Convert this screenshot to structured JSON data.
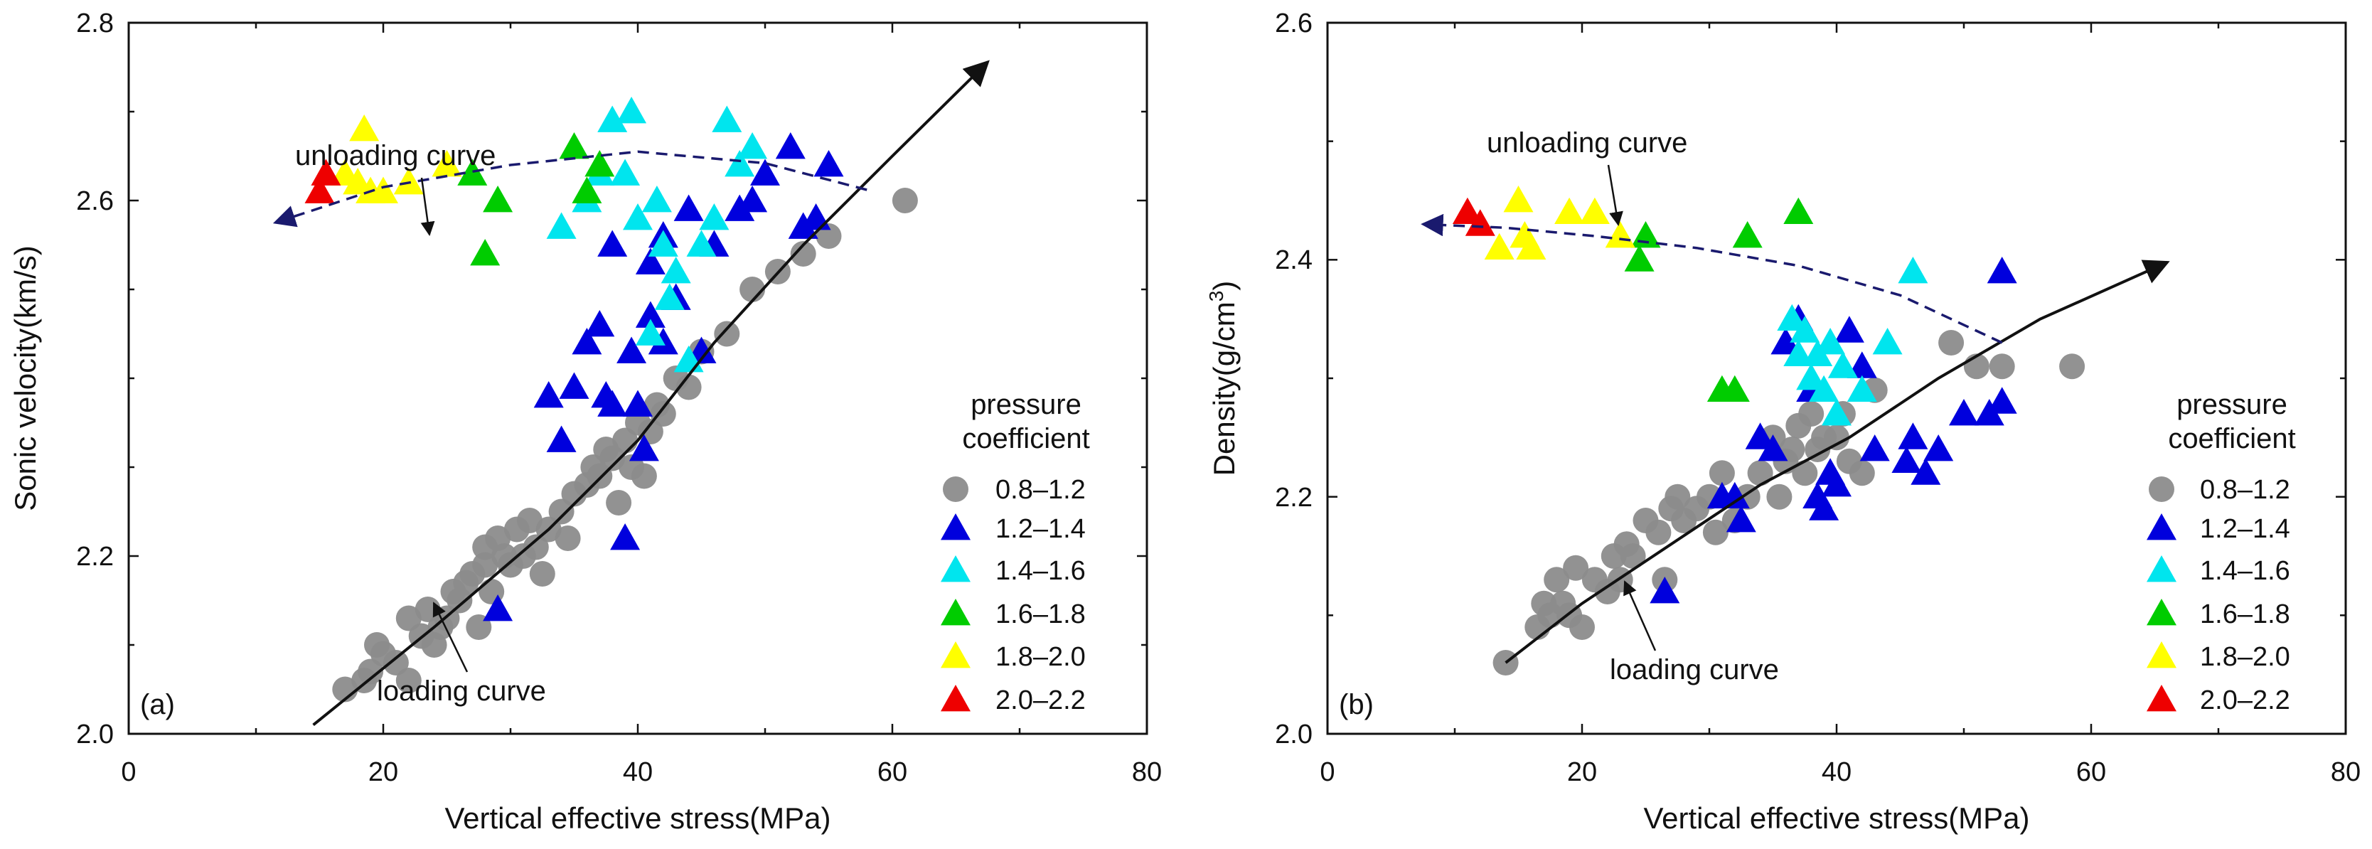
{
  "legend": {
    "title_line1": "pressure",
    "title_line2": "coefficient",
    "entries": [
      {
        "label": "0.8–1.2",
        "marker": "circle",
        "color": "#8c8c8c"
      },
      {
        "label": "1.2–1.4",
        "marker": "triangle",
        "color": "#0000dd"
      },
      {
        "label": "1.4–1.6",
        "marker": "triangle",
        "color": "#00e5ee"
      },
      {
        "label": "1.6–1.8",
        "marker": "triangle",
        "color": "#00cc00"
      },
      {
        "label": "1.8–2.0",
        "marker": "triangle",
        "color": "#ffff00"
      },
      {
        "label": "2.0–2.2",
        "marker": "triangle",
        "color": "#ee0000"
      }
    ]
  },
  "chart_data": [
    {
      "type": "scatter",
      "panel_label": "(a)",
      "xlabel": "Vertical effective stress(MPa)",
      "ylabel": "Sonic velocity(km/s)",
      "xlim": [
        0,
        80
      ],
      "ylim": [
        2.0,
        2.8
      ],
      "xticks": [
        "0",
        "20",
        "40",
        "60",
        "80"
      ],
      "yticks": [
        "2.0",
        "2.2",
        "2.6",
        "2.8"
      ],
      "ytick_values": [
        2.0,
        2.2,
        2.6,
        2.8
      ],
      "annotations": [
        {
          "text": "unloading curve",
          "x": 22,
          "y": 2.68
        },
        {
          "text": "loading curve",
          "x": 28,
          "y": 2.03
        }
      ],
      "curves": [
        {
          "name": "loading curve",
          "style": "solid",
          "arrow": "end",
          "x": [
            14.5,
            24,
            33,
            40,
            46,
            53,
            60,
            67.5
          ],
          "y": [
            2.01,
            2.12,
            2.23,
            2.33,
            2.44,
            2.55,
            2.65,
            2.756
          ]
        },
        {
          "name": "unloading curve",
          "style": "dashed",
          "arrow": "end",
          "x": [
            58,
            50,
            40,
            30,
            20,
            11.5
          ],
          "y": [
            2.612,
            2.642,
            2.655,
            2.64,
            2.615,
            2.575
          ]
        }
      ],
      "series": [
        {
          "name": "0.8–1.2",
          "x": [
            17,
            18.5,
            19,
            19.5,
            20,
            21,
            22,
            22,
            23,
            23.5,
            24,
            24.5,
            25,
            25.5,
            26,
            26.5,
            27,
            27.5,
            28,
            28,
            28.5,
            29,
            29.5,
            30,
            30.5,
            31,
            31.5,
            32,
            32.5,
            33,
            34,
            34.5,
            35,
            36,
            36.5,
            37,
            37.5,
            38,
            38.5,
            39,
            39.5,
            40,
            40.5,
            41,
            41.5,
            42,
            43,
            44,
            45,
            47,
            49,
            51,
            53,
            55,
            61
          ],
          "y": [
            2.05,
            2.06,
            2.07,
            2.1,
            2.09,
            2.08,
            2.06,
            2.13,
            2.11,
            2.14,
            2.1,
            2.12,
            2.13,
            2.16,
            2.15,
            2.17,
            2.18,
            2.12,
            2.19,
            2.21,
            2.16,
            2.22,
            2.2,
            2.19,
            2.23,
            2.2,
            2.24,
            2.21,
            2.18,
            2.23,
            2.25,
            2.22,
            2.27,
            2.28,
            2.3,
            2.29,
            2.32,
            2.31,
            2.26,
            2.33,
            2.3,
            2.35,
            2.29,
            2.34,
            2.37,
            2.36,
            2.4,
            2.39,
            2.43,
            2.45,
            2.5,
            2.52,
            2.54,
            2.56,
            2.6
          ]
        },
        {
          "name": "1.2–1.4",
          "x": [
            29,
            33,
            34,
            35,
            36,
            37,
            37.5,
            38,
            38,
            39,
            39.5,
            40,
            40.5,
            41,
            41,
            42,
            42,
            43,
            44,
            45,
            46,
            48,
            49,
            50,
            52,
            53,
            54,
            55
          ],
          "y": [
            2.14,
            2.38,
            2.33,
            2.39,
            2.44,
            2.46,
            2.38,
            2.37,
            2.55,
            2.22,
            2.43,
            2.37,
            2.32,
            2.47,
            2.53,
            2.44,
            2.56,
            2.49,
            2.59,
            2.43,
            2.55,
            2.59,
            2.6,
            2.63,
            2.66,
            2.57,
            2.58,
            2.64
          ]
        },
        {
          "name": "1.4–1.6",
          "x": [
            34,
            36,
            37,
            38,
            39,
            39.5,
            40,
            41,
            41.5,
            42,
            42.5,
            43,
            44,
            45,
            46,
            47,
            48,
            49
          ],
          "y": [
            2.57,
            2.6,
            2.63,
            2.69,
            2.63,
            2.7,
            2.58,
            2.45,
            2.6,
            2.55,
            2.49,
            2.52,
            2.42,
            2.55,
            2.58,
            2.69,
            2.64,
            2.66
          ]
        },
        {
          "name": "1.6–1.8",
          "x": [
            27,
            28,
            29,
            35,
            36,
            37
          ],
          "y": [
            2.63,
            2.54,
            2.6,
            2.66,
            2.61,
            2.64
          ]
        },
        {
          "name": "1.8–2.0",
          "x": [
            17,
            18,
            18.5,
            19,
            20,
            22,
            25
          ],
          "y": [
            2.63,
            2.62,
            2.68,
            2.61,
            2.61,
            2.62,
            2.64
          ]
        },
        {
          "name": "2.0–2.2",
          "x": [
            15,
            15.5
          ],
          "y": [
            2.61,
            2.63
          ]
        }
      ]
    },
    {
      "type": "scatter",
      "panel_label": "(b)",
      "xlabel": "Vertical effective stress(MPa)",
      "ylabel": "Density(g/cm³)",
      "ylabel_main": "Density(g/cm",
      "ylabel_sup": "3",
      "ylabel_tail": ")",
      "xlim": [
        0,
        80
      ],
      "ylim": [
        2.0,
        2.6
      ],
      "xticks": [
        "0",
        "20",
        "40",
        "60",
        "80"
      ],
      "yticks": [
        "2.0",
        "2.2",
        "2.4",
        "2.6"
      ],
      "ytick_values": [
        2.0,
        2.2,
        2.4,
        2.6
      ],
      "annotations": [
        {
          "text": "unloading curve",
          "x": 22,
          "y": 2.49
        },
        {
          "text": "loading curve",
          "x": 30,
          "y": 2.05
        }
      ],
      "curves": [
        {
          "name": "loading curve",
          "style": "solid",
          "arrow": "end",
          "x": [
            14,
            20,
            27,
            34,
            41,
            48,
            56,
            66
          ],
          "y": [
            2.06,
            2.11,
            2.16,
            2.21,
            2.25,
            2.3,
            2.35,
            2.398
          ]
        },
        {
          "name": "unloading curve",
          "style": "dashed",
          "arrow": "end",
          "x": [
            53,
            45,
            37,
            29,
            21,
            14,
            7.5
          ],
          "y": [
            2.33,
            2.37,
            2.395,
            2.41,
            2.42,
            2.427,
            2.43
          ]
        }
      ],
      "series": [
        {
          "name": "0.8–1.2",
          "x": [
            14,
            16.5,
            17,
            17.5,
            18,
            18.5,
            19,
            19.5,
            20,
            21,
            22,
            22.5,
            23,
            23.5,
            24,
            25,
            26,
            26.5,
            27,
            27.5,
            28,
            29,
            30,
            30.5,
            31,
            32,
            33,
            34,
            35,
            35.5,
            36,
            36.5,
            37,
            37.5,
            38,
            38.5,
            39,
            40,
            40.5,
            41,
            42,
            43,
            49,
            51,
            53,
            58.5
          ],
          "y": [
            2.06,
            2.09,
            2.11,
            2.1,
            2.13,
            2.11,
            2.1,
            2.14,
            2.09,
            2.13,
            2.12,
            2.15,
            2.13,
            2.16,
            2.15,
            2.18,
            2.17,
            2.13,
            2.19,
            2.2,
            2.18,
            2.19,
            2.2,
            2.17,
            2.22,
            2.18,
            2.2,
            2.22,
            2.25,
            2.2,
            2.23,
            2.24,
            2.26,
            2.22,
            2.27,
            2.24,
            2.25,
            2.25,
            2.27,
            2.23,
            2.22,
            2.29,
            2.33,
            2.31,
            2.31,
            2.31
          ]
        },
        {
          "name": "1.2–1.4",
          "x": [
            26.5,
            31,
            32,
            32.5,
            34,
            35,
            36,
            37,
            38,
            38.5,
            39,
            39.5,
            40,
            41,
            42,
            43,
            45.5,
            46,
            47,
            48,
            50,
            52,
            53,
            53
          ],
          "y": [
            2.12,
            2.2,
            2.2,
            2.18,
            2.25,
            2.24,
            2.33,
            2.35,
            2.29,
            2.2,
            2.19,
            2.22,
            2.21,
            2.34,
            2.31,
            2.24,
            2.23,
            2.25,
            2.22,
            2.24,
            2.27,
            2.27,
            2.39,
            2.28
          ]
        },
        {
          "name": "1.4–1.6",
          "x": [
            36.5,
            37,
            37.5,
            38,
            38.5,
            39,
            39.5,
            40,
            40.5,
            42,
            44,
            46
          ],
          "y": [
            2.35,
            2.32,
            2.34,
            2.3,
            2.32,
            2.29,
            2.33,
            2.27,
            2.31,
            2.29,
            2.33,
            2.39
          ]
        },
        {
          "name": "1.6–1.8",
          "x": [
            24.5,
            25,
            31,
            32,
            33,
            37
          ],
          "y": [
            2.4,
            2.42,
            2.29,
            2.29,
            2.42,
            2.44
          ]
        },
        {
          "name": "1.8–2.0",
          "x": [
            13.5,
            15,
            15.5,
            16,
            19,
            21,
            23
          ],
          "y": [
            2.41,
            2.45,
            2.42,
            2.41,
            2.44,
            2.44,
            2.42
          ]
        },
        {
          "name": "2.0–2.2",
          "x": [
            11,
            12
          ],
          "y": [
            2.44,
            2.43
          ]
        }
      ]
    }
  ]
}
